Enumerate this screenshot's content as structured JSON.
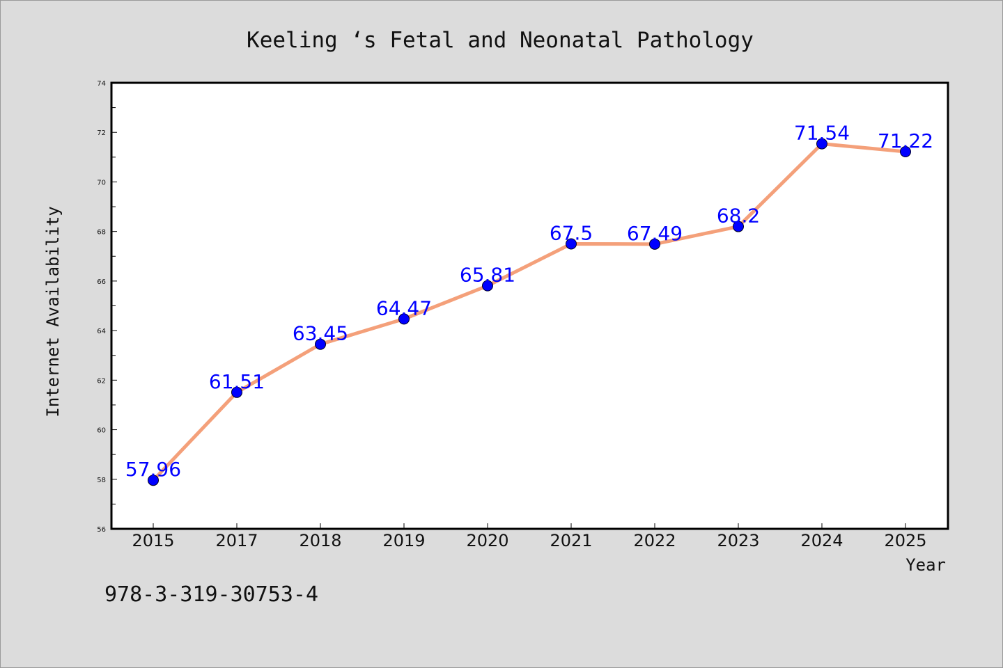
{
  "chart_data": {
    "type": "line",
    "title": "Keeling ‘s Fetal and Neonatal Pathology",
    "xlabel": "Year",
    "ylabel": "Internet Availability",
    "categories": [
      "2015",
      "2017",
      "2018",
      "2019",
      "2020",
      "2021",
      "2022",
      "2023",
      "2024",
      "2025"
    ],
    "series": [
      {
        "values": [
          57.96,
          61.51,
          63.45,
          64.47,
          65.81,
          67.5,
          67.49,
          68.2,
          71.54,
          71.22
        ],
        "labels": [
          "57.96",
          "61.51",
          "63.45",
          "64.47",
          "65.81",
          "67.5",
          "67.49",
          "68.2",
          "71.54",
          "71.22"
        ]
      }
    ],
    "ylim": [
      56,
      74
    ],
    "yticks": [
      "56",
      "58",
      "60",
      "62",
      "64",
      "66",
      "68",
      "70",
      "72",
      "74"
    ],
    "grid": false,
    "legend": "none",
    "colors": {
      "line": "#f4a07a",
      "marker": "#0000ff",
      "labels": "#0000ff",
      "background": "#dcdcdc",
      "plot_area": "#ffffff"
    }
  },
  "footnote": "978-3-319-30753-4"
}
